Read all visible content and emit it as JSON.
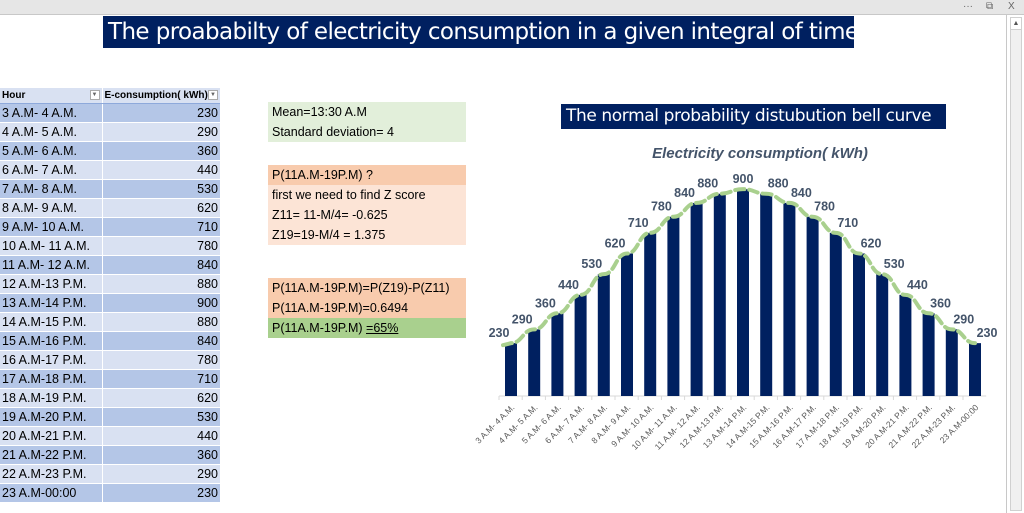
{
  "window": {
    "controls": {
      "more": "···",
      "restore": "⧉",
      "close": "X"
    }
  },
  "main_title": "The proababilty of electricity consumption in a given integral of time.",
  "table": {
    "headers": [
      "Hour",
      "E-consumption( kWh)"
    ],
    "rows": [
      {
        "hour": "3 A.M- 4 A.M.",
        "value": "230"
      },
      {
        "hour": "4 A.M- 5 A.M.",
        "value": "290"
      },
      {
        "hour": "5 A.M- 6 A.M.",
        "value": "360"
      },
      {
        "hour": "6 A.M- 7 A.M.",
        "value": "440"
      },
      {
        "hour": "7 A.M- 8 A.M.",
        "value": "530"
      },
      {
        "hour": "8 A.M- 9 A.M.",
        "value": "620"
      },
      {
        "hour": "9 A.M- 10 A.M.",
        "value": "710"
      },
      {
        "hour": "10 A.M- 11 A.M.",
        "value": "780"
      },
      {
        "hour": "11 A.M- 12 A.M.",
        "value": "840"
      },
      {
        "hour": "12 A.M-13 P.M.",
        "value": "880"
      },
      {
        "hour": "13 A.M-14 P.M.",
        "value": "900"
      },
      {
        "hour": "14 A.M-15 P.M.",
        "value": "880"
      },
      {
        "hour": "15 A.M-16 P.M.",
        "value": "840"
      },
      {
        "hour": "16 A.M-17 P.M.",
        "value": "780"
      },
      {
        "hour": "17 A.M-18 P.M.",
        "value": "710"
      },
      {
        "hour": "18 A.M-19 P.M.",
        "value": "620"
      },
      {
        "hour": "19 A.M-20 P.M.",
        "value": "530"
      },
      {
        "hour": "20 A.M-21 P.M.",
        "value": "440"
      },
      {
        "hour": "21 A.M-22 P.M.",
        "value": "360"
      },
      {
        "hour": "22 A.M-23 P.M.",
        "value": "290"
      },
      {
        "hour": "23 A.M-00:00",
        "value": "230"
      }
    ]
  },
  "stats": {
    "mean": "Mean=13:30 A.M",
    "std": "Standard deviation= 4"
  },
  "zscore": {
    "question": "P(11A.M-19P.M) ?",
    "step": "first we need to find Z score",
    "z11": "Z11= 11-M/4= -0.625",
    "z19": "Z19=19-M/4 = 1.375"
  },
  "result": {
    "formula": "P(11A.M-19P.M)=P(Z19)-P(Z11)",
    "value": "P(11A.M-19P.M)=0.6494",
    "final_prefix": "P(11A.M-19P.M) ",
    "final_value": "=65%"
  },
  "colors": {
    "navy": "#002060",
    "curve": "#a9d08e",
    "label": "#44546a"
  },
  "chart_data": {
    "type": "bar",
    "title": "The normal probability distubution bell curve",
    "subtitle": "Electricity consumption( kWh)",
    "xlabel": "",
    "ylabel": "",
    "ylim": [
      0,
      1000
    ],
    "grid": false,
    "legend": "none",
    "overlay": "dashed bell-curve trendline",
    "categories": [
      "3 A.M- 4 A.M.",
      "4 A.M- 5 A.M.",
      "5 A.M- 6 A.M.",
      "6 A.M- 7 A.M.",
      "7 A.M- 8 A.M.",
      "8 A.M- 9 A.M.",
      "9 A.M- 10 A.M.",
      "10 A.M- 11 A.M.",
      "11 A.M- 12 A.M.",
      "12 A.M-13 P.M.",
      "13 A.M-14 P.M.",
      "14 A.M-15 P.M.",
      "15 A.M-16 P.M.",
      "16 A.M-17 P.M.",
      "17 A.M-18 P.M.",
      "18 A.M-19 P.M.",
      "19 A.M-20 P.M.",
      "20 A.M-21 P.M.",
      "21 A.M-22 P.M.",
      "22 A.M-23 P.M.",
      "23 A.M-00:00"
    ],
    "values": [
      230,
      290,
      360,
      440,
      530,
      620,
      710,
      780,
      840,
      880,
      900,
      880,
      840,
      780,
      710,
      620,
      530,
      440,
      360,
      290,
      230
    ]
  }
}
